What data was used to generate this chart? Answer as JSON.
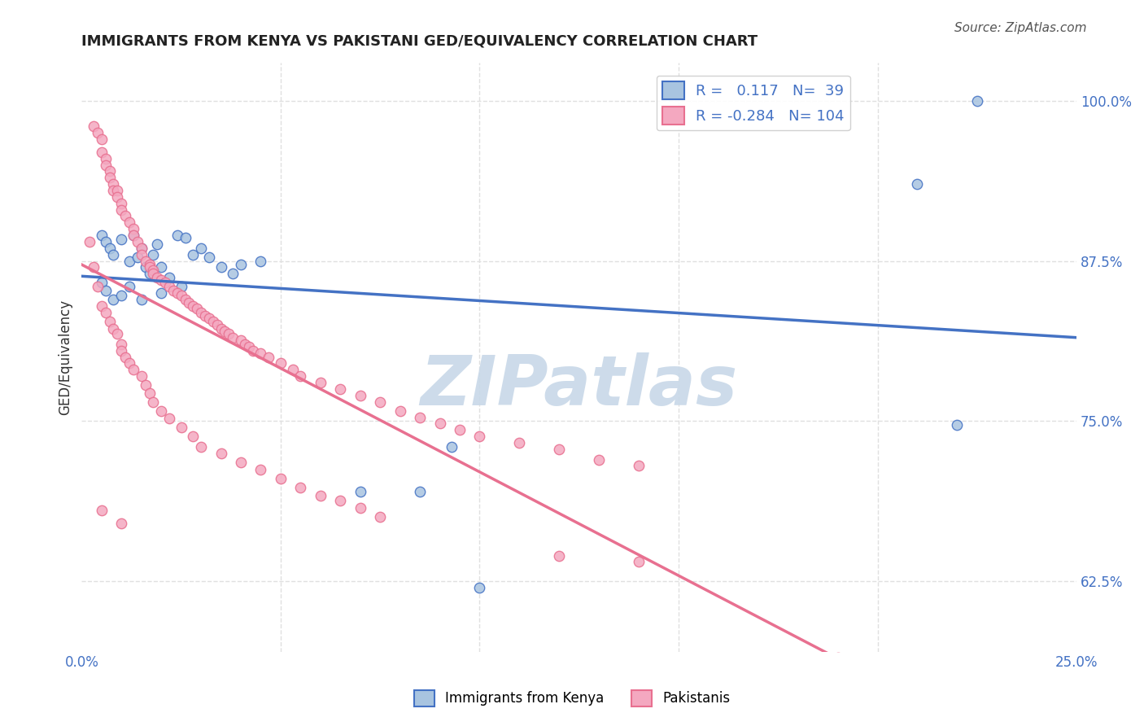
{
  "title": "IMMIGRANTS FROM KENYA VS PAKISTANI GED/EQUIVALENCY CORRELATION CHART",
  "source": "Source: ZipAtlas.com",
  "ylabel": "GED/Equivalency",
  "yticks": [
    "62.5%",
    "75.0%",
    "87.5%",
    "100.0%"
  ],
  "ytick_vals": [
    0.625,
    0.75,
    0.875,
    1.0
  ],
  "xlim": [
    0.0,
    0.25
  ],
  "ylim": [
    0.57,
    1.03
  ],
  "legend_kenya_r": "0.117",
  "legend_kenya_n": "39",
  "legend_pak_r": "-0.284",
  "legend_pak_n": "104",
  "kenya_color": "#a8c4e0",
  "pak_color": "#f4a8c0",
  "kenya_line_color": "#4472c4",
  "pak_line_color": "#e87090",
  "watermark_color": "#c8d8e8",
  "kenya_scatter": [
    [
      0.005,
      0.895
    ],
    [
      0.006,
      0.89
    ],
    [
      0.007,
      0.885
    ],
    [
      0.008,
      0.88
    ],
    [
      0.01,
      0.892
    ],
    [
      0.012,
      0.875
    ],
    [
      0.013,
      0.895
    ],
    [
      0.014,
      0.878
    ],
    [
      0.015,
      0.885
    ],
    [
      0.016,
      0.87
    ],
    [
      0.017,
      0.865
    ],
    [
      0.018,
      0.88
    ],
    [
      0.019,
      0.888
    ],
    [
      0.02,
      0.87
    ],
    [
      0.022,
      0.862
    ],
    [
      0.024,
      0.895
    ],
    [
      0.026,
      0.893
    ],
    [
      0.028,
      0.88
    ],
    [
      0.03,
      0.885
    ],
    [
      0.032,
      0.878
    ],
    [
      0.035,
      0.87
    ],
    [
      0.038,
      0.865
    ],
    [
      0.04,
      0.872
    ],
    [
      0.045,
      0.875
    ],
    [
      0.005,
      0.858
    ],
    [
      0.006,
      0.852
    ],
    [
      0.008,
      0.845
    ],
    [
      0.01,
      0.848
    ],
    [
      0.012,
      0.855
    ],
    [
      0.015,
      0.845
    ],
    [
      0.02,
      0.85
    ],
    [
      0.025,
      0.855
    ],
    [
      0.093,
      0.73
    ],
    [
      0.22,
      0.747
    ],
    [
      0.225,
      1.0
    ],
    [
      0.21,
      0.935
    ],
    [
      0.07,
      0.695
    ],
    [
      0.085,
      0.695
    ],
    [
      0.1,
      0.62
    ]
  ],
  "pak_scatter": [
    [
      0.003,
      0.98
    ],
    [
      0.004,
      0.975
    ],
    [
      0.005,
      0.97
    ],
    [
      0.005,
      0.96
    ],
    [
      0.006,
      0.955
    ],
    [
      0.006,
      0.95
    ],
    [
      0.007,
      0.945
    ],
    [
      0.007,
      0.94
    ],
    [
      0.008,
      0.935
    ],
    [
      0.008,
      0.93
    ],
    [
      0.009,
      0.93
    ],
    [
      0.009,
      0.925
    ],
    [
      0.01,
      0.92
    ],
    [
      0.01,
      0.915
    ],
    [
      0.011,
      0.91
    ],
    [
      0.012,
      0.905
    ],
    [
      0.013,
      0.9
    ],
    [
      0.013,
      0.895
    ],
    [
      0.014,
      0.89
    ],
    [
      0.015,
      0.885
    ],
    [
      0.015,
      0.88
    ],
    [
      0.016,
      0.875
    ],
    [
      0.017,
      0.872
    ],
    [
      0.017,
      0.87
    ],
    [
      0.018,
      0.868
    ],
    [
      0.018,
      0.865
    ],
    [
      0.019,
      0.862
    ],
    [
      0.02,
      0.86
    ],
    [
      0.021,
      0.858
    ],
    [
      0.022,
      0.855
    ],
    [
      0.023,
      0.852
    ],
    [
      0.024,
      0.85
    ],
    [
      0.025,
      0.848
    ],
    [
      0.026,
      0.845
    ],
    [
      0.027,
      0.842
    ],
    [
      0.028,
      0.84
    ],
    [
      0.029,
      0.838
    ],
    [
      0.03,
      0.835
    ],
    [
      0.031,
      0.832
    ],
    [
      0.032,
      0.83
    ],
    [
      0.033,
      0.828
    ],
    [
      0.034,
      0.825
    ],
    [
      0.035,
      0.822
    ],
    [
      0.036,
      0.82
    ],
    [
      0.037,
      0.818
    ],
    [
      0.038,
      0.815
    ],
    [
      0.04,
      0.813
    ],
    [
      0.041,
      0.81
    ],
    [
      0.042,
      0.808
    ],
    [
      0.043,
      0.805
    ],
    [
      0.045,
      0.803
    ],
    [
      0.047,
      0.8
    ],
    [
      0.05,
      0.795
    ],
    [
      0.053,
      0.79
    ],
    [
      0.055,
      0.785
    ],
    [
      0.06,
      0.78
    ],
    [
      0.065,
      0.775
    ],
    [
      0.07,
      0.77
    ],
    [
      0.075,
      0.765
    ],
    [
      0.08,
      0.758
    ],
    [
      0.085,
      0.753
    ],
    [
      0.09,
      0.748
    ],
    [
      0.095,
      0.743
    ],
    [
      0.1,
      0.738
    ],
    [
      0.11,
      0.733
    ],
    [
      0.12,
      0.728
    ],
    [
      0.13,
      0.72
    ],
    [
      0.14,
      0.715
    ],
    [
      0.002,
      0.89
    ],
    [
      0.003,
      0.87
    ],
    [
      0.004,
      0.855
    ],
    [
      0.005,
      0.84
    ],
    [
      0.006,
      0.835
    ],
    [
      0.007,
      0.828
    ],
    [
      0.008,
      0.822
    ],
    [
      0.009,
      0.818
    ],
    [
      0.01,
      0.81
    ],
    [
      0.01,
      0.805
    ],
    [
      0.011,
      0.8
    ],
    [
      0.012,
      0.795
    ],
    [
      0.013,
      0.79
    ],
    [
      0.015,
      0.785
    ],
    [
      0.016,
      0.778
    ],
    [
      0.017,
      0.772
    ],
    [
      0.018,
      0.765
    ],
    [
      0.02,
      0.758
    ],
    [
      0.022,
      0.752
    ],
    [
      0.025,
      0.745
    ],
    [
      0.028,
      0.738
    ],
    [
      0.03,
      0.73
    ],
    [
      0.035,
      0.725
    ],
    [
      0.04,
      0.718
    ],
    [
      0.045,
      0.712
    ],
    [
      0.05,
      0.705
    ],
    [
      0.055,
      0.698
    ],
    [
      0.06,
      0.692
    ],
    [
      0.065,
      0.688
    ],
    [
      0.07,
      0.682
    ],
    [
      0.075,
      0.675
    ],
    [
      0.12,
      0.645
    ],
    [
      0.14,
      0.64
    ],
    [
      0.19,
      0.565
    ],
    [
      0.21,
      0.56
    ],
    [
      0.005,
      0.68
    ],
    [
      0.01,
      0.67
    ]
  ],
  "background_color": "#ffffff",
  "grid_color": "#e0e0e0"
}
